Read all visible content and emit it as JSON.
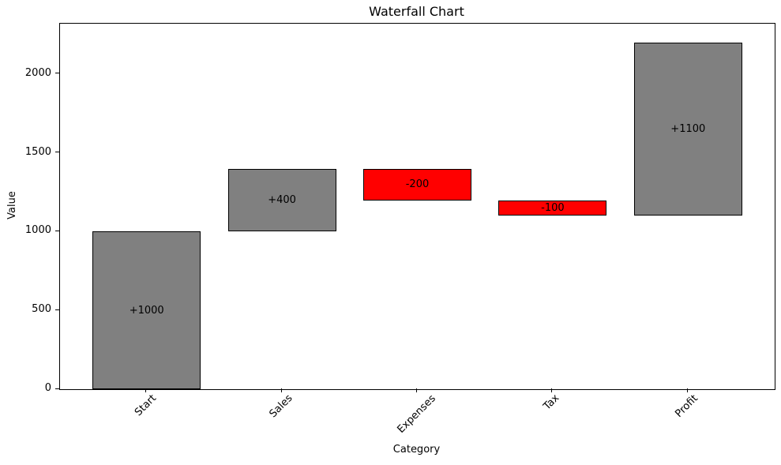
{
  "chart_data": {
    "type": "bar",
    "variant": "waterfall",
    "title": "Waterfall Chart",
    "xlabel": "Category",
    "ylabel": "Value",
    "categories": [
      "Start",
      "Sales",
      "Expenses",
      "Tax",
      "Profit"
    ],
    "bars": [
      {
        "category": "Start",
        "base": 0,
        "top": 1000,
        "change": 1000,
        "label": "+1000",
        "color": "#808080"
      },
      {
        "category": "Sales",
        "base": 1000,
        "top": 1400,
        "change": 400,
        "label": "+400",
        "color": "#808080"
      },
      {
        "category": "Expenses",
        "base": 1200,
        "top": 1400,
        "change": -200,
        "label": "-200",
        "color": "#ff0000"
      },
      {
        "category": "Tax",
        "base": 1100,
        "top": 1200,
        "change": -100,
        "label": "-100",
        "color": "#ff0000"
      },
      {
        "category": "Profit",
        "base": 1100,
        "top": 2200,
        "change": 1100,
        "label": "+1100",
        "color": "#808080"
      }
    ],
    "ylim": [
      0,
      2320
    ],
    "yticks": [
      0,
      500,
      1000,
      1500,
      2000
    ],
    "xtick_rotation_deg": 45,
    "bar_width_fraction": 0.8,
    "grid": false,
    "legend": false,
    "colors": {
      "increase": "#808080",
      "decrease": "#ff0000",
      "edge": "#000000",
      "text": "#000000",
      "background": "#ffffff"
    }
  }
}
